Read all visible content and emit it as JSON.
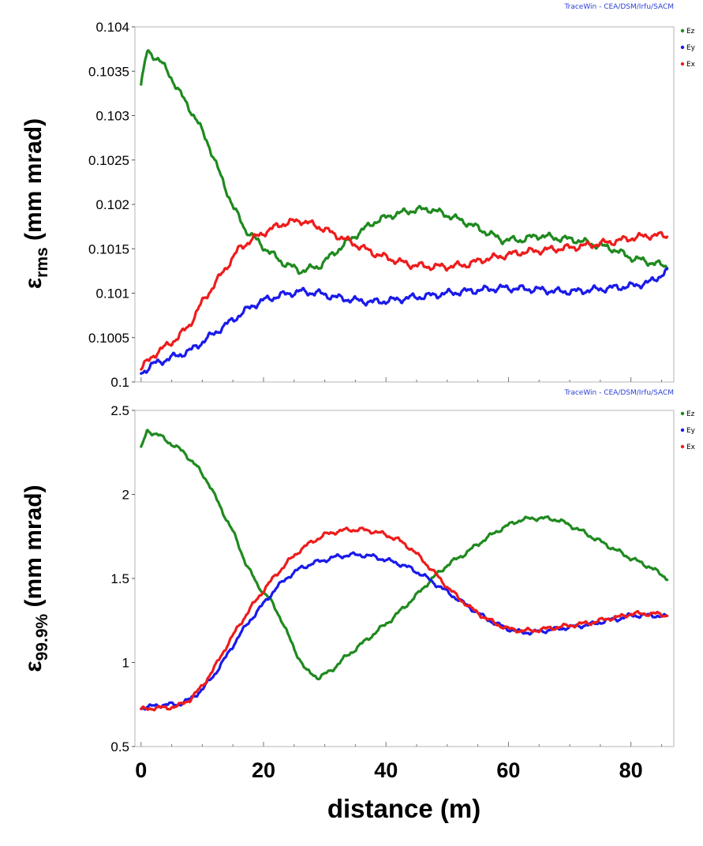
{
  "x_axis": {
    "label": "distance (m)",
    "ticks": [
      0,
      20,
      40,
      60,
      80
    ],
    "range": [
      -1,
      87
    ]
  },
  "series_colors": {
    "Ez": "#1f8a1f",
    "Ey": "#1a1aeb",
    "Ex": "#ee1c1c"
  },
  "chart_data": [
    {
      "type": "line",
      "title": "",
      "credit": "TraceWin - CEA/DSM/Irfu/SACM",
      "ylabel": "ε",
      "ylabel_sub": "rms",
      "ylabel_unit": " (mm mrad)",
      "xlabel": "distance (m)",
      "ylim": [
        0.1,
        0.104
      ],
      "yticks": [
        "0.1",
        "0.1005",
        "0.101",
        "0.1015",
        "0.102",
        "0.1025",
        "0.103",
        "0.1035",
        "0.104"
      ],
      "legend_position": "top-right",
      "series": [
        {
          "name": "Ez",
          "color": "#1f8a1f",
          "x": [
            0,
            1,
            3,
            5,
            7,
            9,
            11,
            13,
            15,
            17,
            20,
            23,
            26,
            29,
            32,
            35,
            38,
            41,
            44,
            47,
            50,
            53,
            56,
            59,
            62,
            65,
            68,
            71,
            74,
            77,
            80,
            83,
            86
          ],
          "y": [
            0.10335,
            0.10372,
            0.10363,
            0.10342,
            0.10318,
            0.10296,
            0.10268,
            0.10232,
            0.10198,
            0.10172,
            0.10152,
            0.10135,
            0.10125,
            0.1013,
            0.10148,
            0.10165,
            0.1018,
            0.10188,
            0.10193,
            0.10195,
            0.10188,
            0.1018,
            0.1017,
            0.1016,
            0.1016,
            0.10165,
            0.10162,
            0.1016,
            0.10155,
            0.1015,
            0.1014,
            0.10135,
            0.1013
          ]
        },
        {
          "name": "Ey",
          "color": "#1a1aeb",
          "x": [
            0,
            2,
            4,
            6,
            8,
            10,
            12,
            14,
            16,
            18,
            20,
            23,
            26,
            29,
            32,
            35,
            38,
            41,
            44,
            47,
            50,
            53,
            56,
            59,
            62,
            65,
            68,
            71,
            74,
            77,
            80,
            83,
            86
          ],
          "y": [
            0.1001,
            0.1002,
            0.10025,
            0.1003,
            0.10035,
            0.10045,
            0.10055,
            0.10065,
            0.10075,
            0.10085,
            0.10092,
            0.10098,
            0.10102,
            0.101,
            0.10095,
            0.10092,
            0.1009,
            0.10092,
            0.10095,
            0.10097,
            0.101,
            0.10102,
            0.10104,
            0.10106,
            0.10105,
            0.10104,
            0.10102,
            0.10102,
            0.10104,
            0.10106,
            0.10108,
            0.10112,
            0.10125
          ]
        },
        {
          "name": "Ex",
          "color": "#ee1c1c",
          "x": [
            0,
            2,
            4,
            6,
            8,
            10,
            12,
            14,
            16,
            18,
            20,
            23,
            26,
            29,
            32,
            35,
            38,
            41,
            44,
            47,
            50,
            53,
            56,
            59,
            62,
            65,
            68,
            71,
            74,
            77,
            80,
            83,
            86
          ],
          "y": [
            0.10015,
            0.1003,
            0.1004,
            0.1005,
            0.10065,
            0.1009,
            0.1011,
            0.1013,
            0.1015,
            0.1016,
            0.10168,
            0.10178,
            0.10182,
            0.10175,
            0.10165,
            0.10155,
            0.10145,
            0.10138,
            0.10132,
            0.1013,
            0.1013,
            0.10132,
            0.10138,
            0.10142,
            0.10146,
            0.10148,
            0.1015,
            0.10152,
            0.10155,
            0.10158,
            0.10162,
            0.10165,
            0.10165
          ]
        }
      ]
    },
    {
      "type": "line",
      "title": "",
      "credit": "TraceWin - CEA/DSM/Irfu/SACM",
      "ylabel": "ε",
      "ylabel_sub": "99.9%",
      "ylabel_unit": " (mm mrad)",
      "xlabel": "distance (m)",
      "ylim": [
        0.5,
        2.5
      ],
      "yticks": [
        "0.5",
        "1",
        "1.5",
        "2",
        "2.5"
      ],
      "legend_position": "top-right",
      "series": [
        {
          "name": "Ez",
          "color": "#1f8a1f",
          "x": [
            0,
            1,
            3,
            5,
            7,
            9,
            11,
            13,
            15,
            17,
            19,
            21,
            23,
            25,
            27,
            29,
            31,
            33,
            35,
            37,
            39,
            41,
            43,
            45,
            47,
            50,
            53,
            56,
            59,
            62,
            65,
            68,
            71,
            74,
            77,
            80,
            83,
            86
          ],
          "y": [
            2.27,
            2.38,
            2.35,
            2.3,
            2.25,
            2.17,
            2.07,
            1.92,
            1.78,
            1.6,
            1.46,
            1.38,
            1.25,
            1.08,
            0.95,
            0.91,
            0.95,
            1.02,
            1.08,
            1.14,
            1.2,
            1.26,
            1.33,
            1.4,
            1.48,
            1.58,
            1.65,
            1.73,
            1.8,
            1.85,
            1.86,
            1.85,
            1.8,
            1.74,
            1.68,
            1.62,
            1.57,
            1.5
          ]
        },
        {
          "name": "Ey",
          "color": "#1a1aeb",
          "x": [
            0,
            2,
            4,
            6,
            8,
            10,
            12,
            14,
            16,
            18,
            20,
            22,
            24,
            26,
            28,
            30,
            32,
            34,
            36,
            38,
            40,
            42,
            44,
            46,
            48,
            50,
            52,
            54,
            56,
            58,
            60,
            62,
            64,
            66,
            68,
            70,
            72,
            74,
            76,
            78,
            80,
            82,
            84,
            86
          ],
          "y": [
            0.73,
            0.74,
            0.75,
            0.75,
            0.78,
            0.84,
            0.93,
            1.04,
            1.16,
            1.26,
            1.35,
            1.44,
            1.51,
            1.56,
            1.59,
            1.61,
            1.63,
            1.64,
            1.64,
            1.63,
            1.61,
            1.59,
            1.56,
            1.52,
            1.47,
            1.42,
            1.37,
            1.32,
            1.27,
            1.23,
            1.2,
            1.18,
            1.18,
            1.19,
            1.2,
            1.21,
            1.22,
            1.23,
            1.25,
            1.26,
            1.28,
            1.28,
            1.28,
            1.27
          ]
        },
        {
          "name": "Ex",
          "color": "#ee1c1c",
          "x": [
            0,
            2,
            4,
            6,
            8,
            10,
            12,
            14,
            16,
            18,
            20,
            22,
            24,
            26,
            28,
            30,
            32,
            34,
            36,
            38,
            40,
            42,
            44,
            46,
            48,
            50,
            52,
            54,
            56,
            58,
            60,
            62,
            64,
            66,
            68,
            70,
            72,
            74,
            76,
            78,
            80,
            82,
            84,
            86
          ],
          "y": [
            0.72,
            0.73,
            0.73,
            0.74,
            0.78,
            0.86,
            0.97,
            1.1,
            1.22,
            1.33,
            1.43,
            1.52,
            1.6,
            1.67,
            1.72,
            1.76,
            1.78,
            1.79,
            1.79,
            1.78,
            1.76,
            1.73,
            1.68,
            1.61,
            1.53,
            1.45,
            1.38,
            1.32,
            1.27,
            1.23,
            1.2,
            1.19,
            1.19,
            1.2,
            1.21,
            1.22,
            1.23,
            1.24,
            1.26,
            1.27,
            1.29,
            1.29,
            1.29,
            1.28
          ]
        }
      ]
    }
  ]
}
